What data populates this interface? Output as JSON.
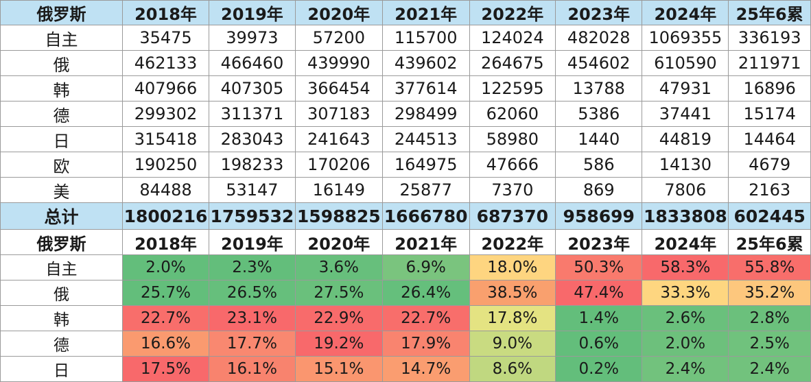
{
  "colors": {
    "header_bg": "#bfe1f3",
    "pct_scale": {
      "green": "#63be7b",
      "yellow": "#ffeb84",
      "red": "#f8696b"
    }
  },
  "table": {
    "header": [
      "俄罗斯",
      "2018年",
      "2019年",
      "2020年",
      "2021年",
      "2022年",
      "2023年",
      "2024年",
      "25年6累"
    ],
    "rows": [
      {
        "label": "自主",
        "values": [
          "35475",
          "39973",
          "57200",
          "115700",
          "124024",
          "482028",
          "1069355",
          "336193"
        ]
      },
      {
        "label": "俄",
        "values": [
          "462133",
          "466460",
          "439990",
          "439602",
          "264675",
          "454602",
          "610590",
          "211971"
        ]
      },
      {
        "label": "韩",
        "values": [
          "407966",
          "407305",
          "366454",
          "377614",
          "122595",
          "13788",
          "47931",
          "16896"
        ]
      },
      {
        "label": "德",
        "values": [
          "299302",
          "311371",
          "307183",
          "298499",
          "62060",
          "5386",
          "37441",
          "15174"
        ]
      },
      {
        "label": "日",
        "values": [
          "315418",
          "283043",
          "241643",
          "244513",
          "58980",
          "1440",
          "44819",
          "14464"
        ]
      },
      {
        "label": "欧",
        "values": [
          "190250",
          "198233",
          "170206",
          "164975",
          "47666",
          "586",
          "14130",
          "4679"
        ]
      },
      {
        "label": "美",
        "values": [
          "84488",
          "53147",
          "16149",
          "25877",
          "7370",
          "869",
          "7806",
          "2163"
        ]
      }
    ],
    "total": {
      "label": "总计",
      "values": [
        "1800216",
        "1759532",
        "1598825",
        "1666780",
        "687370",
        "958699",
        "1833808",
        "602445"
      ]
    },
    "share_header": [
      "俄罗斯",
      "2018年",
      "2019年",
      "2020年",
      "2021年",
      "2022年",
      "2023年",
      "2024年",
      "25年6累"
    ],
    "share_rows": [
      {
        "label": "自主",
        "values": [
          "2.0%",
          "2.3%",
          "3.6%",
          "6.9%",
          "18.0%",
          "50.3%",
          "58.3%",
          "55.8%"
        ],
        "colors": [
          "#63be7b",
          "#63be7b",
          "#67bf7c",
          "#7ac47e",
          "#fed580",
          "#f97a6d",
          "#f8696b",
          "#f86e6b"
        ]
      },
      {
        "label": "俄",
        "values": [
          "25.7%",
          "26.5%",
          "27.5%",
          "26.4%",
          "38.5%",
          "47.4%",
          "33.3%",
          "35.2%"
        ],
        "colors": [
          "#63be7b",
          "#66bf7c",
          "#6ac07c",
          "#65bf7c",
          "#f9a06e",
          "#f8696b",
          "#fed680",
          "#fdc77d"
        ]
      },
      {
        "label": "韩",
        "values": [
          "22.7%",
          "23.1%",
          "22.9%",
          "22.7%",
          "17.8%",
          "1.4%",
          "2.6%",
          "2.8%"
        ],
        "colors": [
          "#f86e6b",
          "#f8696b",
          "#f86b6b",
          "#f86e6b",
          "#e4e382",
          "#63be7b",
          "#6ac07c",
          "#6bc07c"
        ]
      },
      {
        "label": "德",
        "values": [
          "16.6%",
          "17.7%",
          "19.2%",
          "17.9%",
          "9.0%",
          "0.6%",
          "2.0%",
          "2.5%"
        ],
        "colors": [
          "#fa9a6f",
          "#f98870",
          "#f8696b",
          "#f9846f",
          "#c9db81",
          "#63be7b",
          "#6dc07c",
          "#70c27d"
        ]
      },
      {
        "label": "日",
        "values": [
          "17.5%",
          "16.1%",
          "15.1%",
          "14.7%",
          "8.6%",
          "0.2%",
          "2.4%",
          "2.4%"
        ],
        "colors": [
          "#f8696b",
          "#f8836e",
          "#fa966f",
          "#fa9d70",
          "#c0d880",
          "#63be7b",
          "#72c27d",
          "#72c27d"
        ]
      }
    ]
  }
}
